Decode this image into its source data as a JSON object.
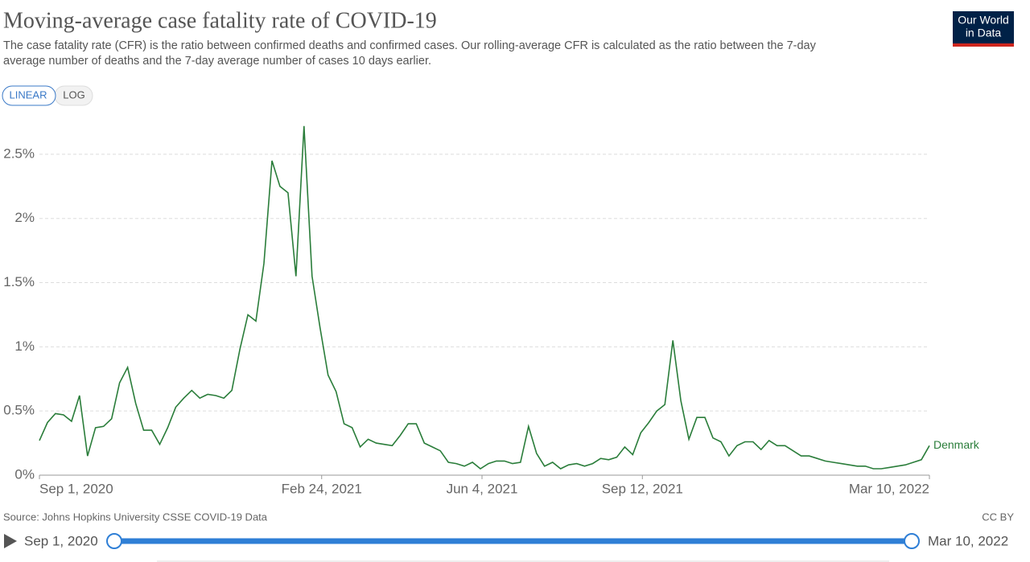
{
  "chart_data": {
    "type": "line",
    "title": "Moving-average case fatality rate of COVID-19",
    "subtitle": [
      "The case fatality rate (CFR) is the ratio between confirmed deaths and confirmed cases. Our rolling-average CFR is calculated as the ratio between the 7-day",
      "average number of deaths and the 7-day average number of cases 10 days earlier."
    ],
    "scale_buttons": [
      "LINEAR",
      "LOG"
    ],
    "logo": [
      "Our World",
      "in Data"
    ],
    "source": "Source: Johns Hopkins University CSSE COVID-19 Data",
    "license": "CC BY",
    "timeline": {
      "start": "Sep 1, 2020",
      "end": "Mar 10, 2022"
    },
    "x": [
      "2020-09-01",
      "2020-09-06",
      "2020-09-11",
      "2020-09-16",
      "2020-09-21",
      "2020-09-26",
      "2020-10-01",
      "2020-10-06",
      "2020-10-11",
      "2020-10-16",
      "2020-10-21",
      "2020-10-26",
      "2020-10-31",
      "2020-11-05",
      "2020-11-10",
      "2020-11-15",
      "2020-11-20",
      "2020-11-25",
      "2020-11-30",
      "2020-12-05",
      "2020-12-10",
      "2020-12-15",
      "2020-12-20",
      "2020-12-25",
      "2020-12-30",
      "2021-01-04",
      "2021-01-09",
      "2021-01-14",
      "2021-01-19",
      "2021-01-24",
      "2021-01-29",
      "2021-02-03",
      "2021-02-08",
      "2021-02-13",
      "2021-02-18",
      "2021-02-23",
      "2021-02-28",
      "2021-03-05",
      "2021-03-10",
      "2021-03-15",
      "2021-03-20",
      "2021-03-25",
      "2021-03-30",
      "2021-04-04",
      "2021-04-09",
      "2021-04-14",
      "2021-04-19",
      "2021-04-24",
      "2021-04-29",
      "2021-05-04",
      "2021-05-09",
      "2021-05-14",
      "2021-05-19",
      "2021-05-24",
      "2021-05-29",
      "2021-06-03",
      "2021-06-08",
      "2021-06-13",
      "2021-06-18",
      "2021-06-23",
      "2021-06-28",
      "2021-07-03",
      "2021-07-08",
      "2021-07-13",
      "2021-07-18",
      "2021-07-23",
      "2021-07-28",
      "2021-08-02",
      "2021-08-07",
      "2021-08-12",
      "2021-08-17",
      "2021-08-22",
      "2021-08-27",
      "2021-09-01",
      "2021-09-06",
      "2021-09-11",
      "2021-09-16",
      "2021-09-21",
      "2021-09-26",
      "2021-10-01",
      "2021-10-06",
      "2021-10-11",
      "2021-10-16",
      "2021-10-21",
      "2021-10-26",
      "2021-10-31",
      "2021-11-05",
      "2021-11-10",
      "2021-11-15",
      "2021-11-20",
      "2021-11-25",
      "2021-11-30",
      "2021-12-05",
      "2021-12-10",
      "2021-12-15",
      "2021-12-20",
      "2021-12-25",
      "2021-12-30",
      "2022-01-04",
      "2022-01-09",
      "2022-01-14",
      "2022-01-19",
      "2022-01-24",
      "2022-01-29",
      "2022-02-03",
      "2022-02-08",
      "2022-02-13",
      "2022-02-18",
      "2022-02-23",
      "2022-02-28",
      "2022-03-05",
      "2022-03-10"
    ],
    "series": [
      {
        "name": "Denmark",
        "color": "#2a7d3a",
        "values": [
          0.27,
          0.41,
          0.48,
          0.47,
          0.42,
          0.62,
          0.15,
          0.37,
          0.38,
          0.44,
          0.72,
          0.84,
          0.56,
          0.35,
          0.35,
          0.24,
          0.37,
          0.53,
          0.6,
          0.66,
          0.6,
          0.63,
          0.62,
          0.6,
          0.66,
          0.98,
          1.25,
          1.2,
          1.65,
          2.45,
          2.25,
          2.2,
          1.55,
          2.72,
          1.55,
          1.15,
          0.78,
          0.65,
          0.4,
          0.37,
          0.22,
          0.28,
          0.25,
          0.24,
          0.23,
          0.31,
          0.4,
          0.4,
          0.25,
          0.22,
          0.19,
          0.1,
          0.09,
          0.07,
          0.1,
          0.05,
          0.09,
          0.11,
          0.11,
          0.09,
          0.1,
          0.38,
          0.17,
          0.07,
          0.1,
          0.05,
          0.08,
          0.09,
          0.07,
          0.09,
          0.13,
          0.12,
          0.14,
          0.22,
          0.16,
          0.33,
          0.41,
          0.5,
          0.55,
          1.05,
          0.58,
          0.28,
          0.45,
          0.45,
          0.29,
          0.26,
          0.15,
          0.23,
          0.26,
          0.26,
          0.2,
          0.27,
          0.23,
          0.23,
          0.19,
          0.15,
          0.15,
          0.13,
          0.11,
          0.1,
          0.09,
          0.08,
          0.07,
          0.07,
          0.05,
          0.05,
          0.06,
          0.07,
          0.08,
          0.1,
          0.12,
          0.23
        ]
      }
    ],
    "xlim": [
      "2020-09-01",
      "2022-03-10"
    ],
    "xticks": [
      {
        "value": "2020-09-01",
        "label": "Sep 1, 2020"
      },
      {
        "value": "2021-02-24",
        "label": "Feb 24, 2021"
      },
      {
        "value": "2021-06-04",
        "label": "Jun 4, 2021"
      },
      {
        "value": "2021-09-12",
        "label": "Sep 12, 2021"
      },
      {
        "value": "2022-03-10",
        "label": "Mar 10, 2022"
      }
    ],
    "ylim": [
      0,
      2.75
    ],
    "yticks": [
      {
        "value": 0,
        "label": "0%"
      },
      {
        "value": 0.5,
        "label": "0.5%"
      },
      {
        "value": 1,
        "label": "1%"
      },
      {
        "value": 1.5,
        "label": "1.5%"
      },
      {
        "value": 2,
        "label": "2%"
      },
      {
        "value": 2.5,
        "label": "2.5%"
      }
    ],
    "grid": true
  }
}
